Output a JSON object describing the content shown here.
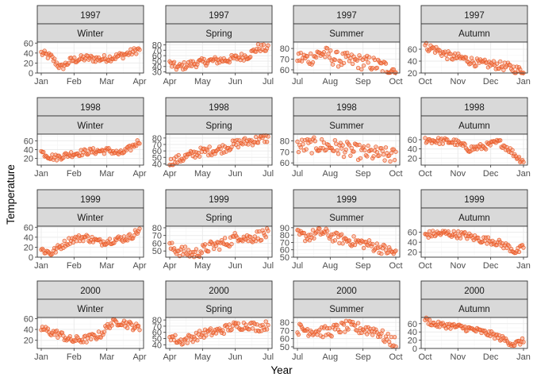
{
  "chart_data": {
    "type": "scatter",
    "xlabel": "Year",
    "ylabel": "Temperature",
    "colors": {
      "point_fill": "#F4845F",
      "point_stroke": "#E8551F",
      "strip_fill": "#D9D9D9",
      "strip_border": "#333333",
      "grid_major": "#EBEBEB",
      "grid_minor": "#F5F5F5",
      "panel_border": "#333333"
    },
    "grid": true,
    "years": [
      "1997",
      "1998",
      "1999",
      "2000"
    ],
    "seasons": [
      {
        "name": "Winter",
        "xticks": [
          "Jan",
          "Feb",
          "Mar",
          "Apr"
        ]
      },
      {
        "name": "Spring",
        "xticks": [
          "Apr",
          "May",
          "Jun",
          "Jul"
        ]
      },
      {
        "name": "Summer",
        "xticks": [
          "Jul",
          "Aug",
          "Sep",
          "Oct"
        ]
      },
      {
        "name": "Autumn",
        "xticks": [
          "Oct",
          "Nov",
          "Dec",
          "Jan"
        ]
      }
    ],
    "panels": [
      {
        "year": "1997",
        "season": "Winter",
        "ylim": [
          0,
          62
        ],
        "yticks": [
          0,
          20,
          40,
          60
        ],
        "anchors": [
          [
            0,
            40
          ],
          [
            0.1,
            32
          ],
          [
            0.2,
            10
          ],
          [
            0.3,
            25
          ],
          [
            0.45,
            30
          ],
          [
            0.6,
            28
          ],
          [
            0.75,
            32
          ],
          [
            0.9,
            40
          ],
          [
            1,
            48
          ]
        ]
      },
      {
        "year": "1997",
        "season": "Spring",
        "ylim": [
          28,
          85
        ],
        "yticks": [
          30,
          40,
          50,
          60,
          70,
          80
        ],
        "anchors": [
          [
            0,
            45
          ],
          [
            0.08,
            38
          ],
          [
            0.2,
            44
          ],
          [
            0.4,
            50
          ],
          [
            0.6,
            53
          ],
          [
            0.8,
            60
          ],
          [
            0.9,
            75
          ],
          [
            1,
            72
          ]
        ]
      },
      {
        "year": "1997",
        "season": "Summer",
        "ylim": [
          57,
          86
        ],
        "yticks": [
          60,
          70,
          80
        ],
        "anchors": [
          [
            0,
            72
          ],
          [
            0.1,
            70
          ],
          [
            0.25,
            76
          ],
          [
            0.4,
            70
          ],
          [
            0.6,
            68
          ],
          [
            0.75,
            66
          ],
          [
            0.9,
            62
          ],
          [
            1,
            60
          ]
        ]
      },
      {
        "year": "1997",
        "season": "Autumn",
        "ylim": [
          20,
          72
        ],
        "yticks": [
          20,
          40,
          60
        ],
        "anchors": [
          [
            0,
            65
          ],
          [
            0.1,
            60
          ],
          [
            0.25,
            48
          ],
          [
            0.4,
            44
          ],
          [
            0.55,
            36
          ],
          [
            0.7,
            34
          ],
          [
            0.85,
            30
          ],
          [
            1,
            22
          ]
        ]
      },
      {
        "year": "1998",
        "season": "Winter",
        "ylim": [
          5,
          75
        ],
        "yticks": [
          20,
          40,
          60
        ],
        "anchors": [
          [
            0,
            35
          ],
          [
            0.08,
            25
          ],
          [
            0.15,
            22
          ],
          [
            0.3,
            30
          ],
          [
            0.5,
            36
          ],
          [
            0.7,
            38
          ],
          [
            0.8,
            30
          ],
          [
            0.9,
            42
          ],
          [
            1,
            60
          ]
        ]
      },
      {
        "year": "1998",
        "season": "Spring",
        "ylim": [
          38,
          86
        ],
        "yticks": [
          40,
          50,
          60,
          70,
          80
        ],
        "anchors": [
          [
            0,
            42
          ],
          [
            0.15,
            50
          ],
          [
            0.3,
            58
          ],
          [
            0.5,
            62
          ],
          [
            0.7,
            72
          ],
          [
            0.85,
            76
          ],
          [
            1,
            80
          ]
        ]
      },
      {
        "year": "1998",
        "season": "Summer",
        "ylim": [
          58,
          86
        ],
        "yticks": [
          60,
          70,
          80
        ],
        "anchors": [
          [
            0,
            75
          ],
          [
            0.2,
            76
          ],
          [
            0.4,
            74
          ],
          [
            0.6,
            70
          ],
          [
            0.8,
            68
          ],
          [
            1,
            66
          ]
        ]
      },
      {
        "year": "1998",
        "season": "Autumn",
        "ylim": [
          5,
          72
        ],
        "yticks": [
          20,
          40,
          60
        ],
        "anchors": [
          [
            0,
            60
          ],
          [
            0.1,
            58
          ],
          [
            0.3,
            55
          ],
          [
            0.45,
            40
          ],
          [
            0.6,
            45
          ],
          [
            0.75,
            55
          ],
          [
            0.85,
            40
          ],
          [
            0.95,
            20
          ],
          [
            1,
            15
          ]
        ]
      },
      {
        "year": "1999",
        "season": "Winter",
        "ylim": [
          0,
          62
        ],
        "yticks": [
          0,
          20,
          40,
          60
        ],
        "anchors": [
          [
            0,
            15
          ],
          [
            0.1,
            8
          ],
          [
            0.2,
            22
          ],
          [
            0.3,
            35
          ],
          [
            0.45,
            40
          ],
          [
            0.6,
            30
          ],
          [
            0.75,
            35
          ],
          [
            0.9,
            40
          ],
          [
            1,
            55
          ]
        ]
      },
      {
        "year": "1999",
        "season": "Spring",
        "ylim": [
          42,
          82
        ],
        "yticks": [
          50,
          60,
          70,
          80
        ],
        "anchors": [
          [
            0,
            55
          ],
          [
            0.1,
            50
          ],
          [
            0.25,
            46
          ],
          [
            0.4,
            55
          ],
          [
            0.6,
            62
          ],
          [
            0.7,
            70
          ],
          [
            0.8,
            66
          ],
          [
            0.9,
            70
          ],
          [
            1,
            72
          ]
        ]
      },
      {
        "year": "1999",
        "season": "Summer",
        "ylim": [
          50,
          92
        ],
        "yticks": [
          50,
          60,
          70,
          80,
          90
        ],
        "anchors": [
          [
            0,
            80
          ],
          [
            0.1,
            78
          ],
          [
            0.25,
            84
          ],
          [
            0.4,
            76
          ],
          [
            0.55,
            72
          ],
          [
            0.7,
            68
          ],
          [
            0.85,
            62
          ],
          [
            1,
            55
          ]
        ]
      },
      {
        "year": "1999",
        "season": "Autumn",
        "ylim": [
          10,
          72
        ],
        "yticks": [
          20,
          40,
          60
        ],
        "anchors": [
          [
            0,
            55
          ],
          [
            0.2,
            58
          ],
          [
            0.4,
            54
          ],
          [
            0.55,
            46
          ],
          [
            0.7,
            42
          ],
          [
            0.85,
            30
          ],
          [
            0.93,
            20
          ],
          [
            1,
            30
          ]
        ]
      },
      {
        "year": "2000",
        "season": "Winter",
        "ylim": [
          5,
          62
        ],
        "yticks": [
          20,
          40,
          60
        ],
        "anchors": [
          [
            0,
            42
          ],
          [
            0.1,
            35
          ],
          [
            0.2,
            30
          ],
          [
            0.3,
            20
          ],
          [
            0.45,
            22
          ],
          [
            0.6,
            30
          ],
          [
            0.7,
            50
          ],
          [
            0.8,
            55
          ],
          [
            0.9,
            48
          ],
          [
            1,
            42
          ]
        ]
      },
      {
        "year": "2000",
        "season": "Spring",
        "ylim": [
          34,
          84
        ],
        "yticks": [
          40,
          50,
          60,
          70,
          80
        ],
        "anchors": [
          [
            0,
            55
          ],
          [
            0.1,
            45
          ],
          [
            0.2,
            50
          ],
          [
            0.35,
            58
          ],
          [
            0.5,
            62
          ],
          [
            0.65,
            70
          ],
          [
            0.8,
            72
          ],
          [
            0.9,
            68
          ],
          [
            1,
            72
          ]
        ]
      },
      {
        "year": "2000",
        "season": "Summer",
        "ylim": [
          48,
          86
        ],
        "yticks": [
          50,
          60,
          70,
          80
        ],
        "anchors": [
          [
            0,
            72
          ],
          [
            0.15,
            70
          ],
          [
            0.3,
            68
          ],
          [
            0.5,
            75
          ],
          [
            0.65,
            72
          ],
          [
            0.8,
            70
          ],
          [
            0.9,
            60
          ],
          [
            1,
            55
          ]
        ]
      },
      {
        "year": "2000",
        "season": "Autumn",
        "ylim": [
          0,
          75
        ],
        "yticks": [
          0,
          20,
          40,
          60
        ],
        "anchors": [
          [
            0,
            70
          ],
          [
            0.1,
            58
          ],
          [
            0.25,
            55
          ],
          [
            0.4,
            50
          ],
          [
            0.55,
            42
          ],
          [
            0.7,
            32
          ],
          [
            0.82,
            20
          ],
          [
            0.9,
            10
          ],
          [
            1,
            18
          ]
        ]
      }
    ],
    "points_per_panel": 90,
    "jitter": 4.5
  }
}
